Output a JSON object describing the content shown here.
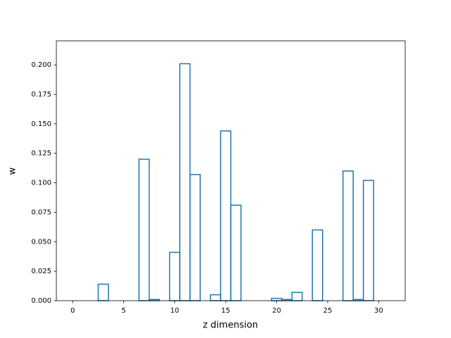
{
  "chart_data": {
    "type": "bar",
    "fill": "none",
    "color": "#1f77b4",
    "bar_width": 1,
    "x_label": "z dimension",
    "y_label": "w",
    "x": [
      0,
      1,
      2,
      3,
      4,
      5,
      6,
      7,
      8,
      9,
      10,
      11,
      12,
      13,
      14,
      15,
      16,
      17,
      18,
      19,
      20,
      21,
      22,
      23,
      24,
      25,
      26,
      27,
      28,
      29,
      30,
      31
    ],
    "values": [
      0,
      0,
      0,
      0.014,
      0,
      0,
      0,
      0.12,
      0.001,
      0,
      0.041,
      0.201,
      0.107,
      0,
      0.005,
      0.144,
      0.081,
      0,
      0,
      0,
      0.002,
      0.001,
      0.007,
      0,
      0.06,
      0,
      0,
      0.11,
      0.001,
      0.102,
      0,
      0
    ],
    "xlim": [
      -1.6,
      32.6
    ],
    "xticks": [
      0,
      5,
      10,
      15,
      20,
      25,
      30
    ],
    "ylim": [
      0,
      0.2204
    ],
    "yticks": [
      {
        "value": 0,
        "label": "0.000"
      },
      0.025,
      {
        "value": 0.05,
        "label": "0.050"
      },
      0.075,
      {
        "value": 0.1,
        "label": "0.100"
      },
      0.125,
      {
        "value": 0.15,
        "label": "0.150"
      },
      0.175,
      {
        "value": 0.2,
        "label": "0.200"
      }
    ],
    "grid": false
  }
}
